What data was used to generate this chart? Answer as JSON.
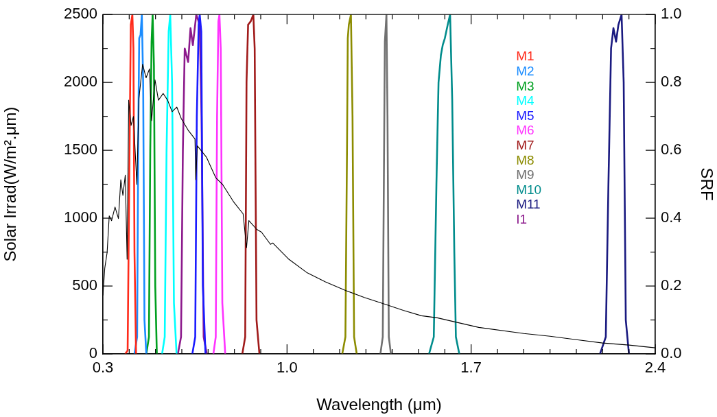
{
  "chart_data": {
    "type": "line",
    "xlabel": "Wavelength (μm)",
    "ylabel": "Solar Irrad(W/m².μm)",
    "y2label": "SRF",
    "legend": "top right",
    "grid": false,
    "marker": "none",
    "line_style": "solid",
    "xlim": [
      0.3,
      2.4
    ],
    "xticks": [
      {
        "value": 0.3,
        "label": "0.3"
      },
      {
        "value": 0.4,
        "label": null
      },
      {
        "value": 0.5,
        "label": null
      },
      {
        "value": 0.6,
        "label": null
      },
      {
        "value": 0.7,
        "label": null
      },
      {
        "value": 0.8,
        "label": null
      },
      {
        "value": 0.9,
        "label": null
      },
      {
        "value": 1.0,
        "label": "1.0"
      },
      {
        "value": 1.1,
        "label": null
      },
      {
        "value": 1.2,
        "label": null
      },
      {
        "value": 1.3,
        "label": null
      },
      {
        "value": 1.4,
        "label": null
      },
      {
        "value": 1.5,
        "label": null
      },
      {
        "value": 1.6,
        "label": null
      },
      {
        "value": 1.7,
        "label": "1.7"
      },
      {
        "value": 1.8,
        "label": null
      },
      {
        "value": 1.9,
        "label": null
      },
      {
        "value": 2.0,
        "label": null
      },
      {
        "value": 2.1,
        "label": null
      },
      {
        "value": 2.2,
        "label": null
      },
      {
        "value": 2.3,
        "label": null
      },
      {
        "value": 2.4,
        "label": "2.4"
      }
    ],
    "ylim": [
      0,
      2500
    ],
    "yticks": [
      0,
      {
        "value": 250,
        "label": null
      },
      500,
      {
        "value": 750,
        "label": null
      },
      1000,
      {
        "value": 1250,
        "label": null
      },
      1500,
      {
        "value": 1750,
        "label": null
      },
      2000,
      {
        "value": 2250,
        "label": null
      },
      2500
    ],
    "y2lim": [
      0,
      1
    ],
    "y2ticks": [
      {
        "value": 0,
        "label": "0.0"
      },
      {
        "value": 0.1,
        "label": null
      },
      {
        "value": 0.2,
        "label": "0.2"
      },
      {
        "value": 0.3,
        "label": null
      },
      {
        "value": 0.4,
        "label": "0.4"
      },
      {
        "value": 0.5,
        "label": null
      },
      {
        "value": 0.6,
        "label": "0.6"
      },
      {
        "value": 0.7,
        "label": null
      },
      {
        "value": 0.8,
        "label": "0.8"
      },
      {
        "value": 0.9,
        "label": null
      },
      {
        "value": 1.0,
        "label": "1.0"
      }
    ],
    "series": [
      {
        "color": "#000000",
        "x": [
          0.3,
          0.307,
          0.316,
          0.324,
          0.333,
          0.346,
          0.359,
          0.368,
          0.376,
          0.385,
          0.392,
          0.398,
          0.407,
          0.416,
          0.429,
          0.437,
          0.451,
          0.464,
          0.477,
          0.485,
          0.498,
          0.511,
          0.529,
          0.546,
          0.563,
          0.581,
          0.598,
          0.624,
          0.65,
          0.653,
          0.659,
          0.694,
          0.729,
          0.755,
          0.798,
          0.833,
          0.846,
          0.855,
          0.885,
          0.903,
          0.937,
          0.946,
          1.007,
          1.077,
          1.146,
          1.224,
          1.294,
          1.372,
          1.442,
          1.511,
          1.571,
          1.729,
          1.9,
          2.0,
          2.1,
          2.2,
          2.3,
          2.4
        ],
        "values": [
          431,
          631,
          747,
          1017,
          982,
          1082,
          997,
          1283,
          1167,
          1317,
          697,
          1869,
          1683,
          1749,
          1248,
          1884,
          2134,
          2034,
          2099,
          1718,
          2019,
          1869,
          1919,
          1869,
          1784,
          1818,
          1733,
          1648,
          1583,
          1283,
          1533,
          1448,
          1298,
          1248,
          1117,
          1032,
          782,
          982,
          917,
          897,
          807,
          817,
          697,
          597,
          531,
          466,
          416,
          366,
          321,
          281,
          266,
          195,
          150,
          130,
          105,
          80,
          65,
          45
        ]
      },
      {
        "name": "M1",
        "color": "#ff2a1a",
        "axis": "y2",
        "x": [
          0.385,
          0.394,
          0.4,
          0.406,
          0.412,
          0.416,
          0.42,
          0.426
        ],
        "values": [
          0,
          0.01,
          0.5,
          0.97,
          1.0,
          0.9,
          0.3,
          0
        ]
      },
      {
        "name": "M2",
        "color": "#1a8cff",
        "axis": "y2",
        "x": [
          0.42,
          0.43,
          0.435,
          0.438,
          0.443,
          0.448,
          0.453,
          0.458,
          0.465
        ],
        "values": [
          0,
          0.05,
          0.7,
          0.93,
          0.94,
          1.0,
          0.8,
          0.1,
          0
        ]
      },
      {
        "name": "M3",
        "color": "#00a020",
        "axis": "y2",
        "x": [
          0.465,
          0.475,
          0.48,
          0.485,
          0.489,
          0.494,
          0.499,
          0.505
        ],
        "values": [
          0,
          0.05,
          0.6,
          0.92,
          1.0,
          0.85,
          0.2,
          0
        ]
      },
      {
        "name": "M4",
        "color": "#00ffff",
        "axis": "y2",
        "x": [
          0.525,
          0.535,
          0.542,
          0.55,
          0.556,
          0.563,
          0.57,
          0.58
        ],
        "values": [
          0,
          0.05,
          0.6,
          0.95,
          1.0,
          0.8,
          0.15,
          0
        ]
      },
      {
        "name": "M5",
        "color": "#1a1aff",
        "axis": "y2",
        "x": [
          0.64,
          0.651,
          0.657,
          0.664,
          0.668,
          0.674,
          0.68,
          0.69
        ],
        "values": [
          0,
          0.05,
          0.7,
          0.97,
          1.0,
          0.95,
          0.2,
          0
        ]
      },
      {
        "name": "M6",
        "color": "#ff33ff",
        "axis": "y2",
        "x": [
          0.72,
          0.729,
          0.734,
          0.739,
          0.743,
          0.748,
          0.754,
          0.765
        ],
        "values": [
          0,
          0.05,
          0.7,
          0.98,
          1.0,
          0.9,
          0.15,
          0
        ]
      },
      {
        "name": "M7",
        "color": "#a01a1a",
        "axis": "y2",
        "x": [
          0.83,
          0.841,
          0.846,
          0.852,
          0.862,
          0.872,
          0.877,
          0.884,
          0.895
        ],
        "values": [
          0,
          0.05,
          0.8,
          0.97,
          0.98,
          1.0,
          0.9,
          0.1,
          0
        ]
      },
      {
        "name": "M8",
        "color": "#8c8c00",
        "axis": "y2",
        "x": [
          1.21,
          1.222,
          1.228,
          1.231,
          1.235,
          1.243,
          1.249,
          1.255,
          1.265
        ],
        "values": [
          0,
          0.05,
          0.6,
          0.93,
          0.97,
          1.0,
          0.7,
          0.05,
          0
        ]
      },
      {
        "name": "M9",
        "color": "#707070",
        "axis": "y2",
        "x": [
          1.355,
          1.364,
          1.369,
          1.372,
          1.378,
          1.382,
          1.387,
          1.395
        ],
        "values": [
          0,
          0.05,
          0.6,
          0.92,
          1.0,
          0.7,
          0.05,
          0
        ]
      },
      {
        "name": "M10",
        "color": "#008c8c",
        "axis": "y2",
        "x": [
          1.54,
          1.558,
          1.568,
          1.576,
          1.585,
          1.592,
          1.6,
          1.611,
          1.62,
          1.628,
          1.636,
          1.642,
          1.655
        ],
        "values": [
          0,
          0.05,
          0.5,
          0.8,
          0.88,
          0.91,
          0.93,
          0.97,
          1.0,
          0.75,
          0.3,
          0.05,
          0
        ]
      },
      {
        "name": "M11",
        "color": "#1a1a80",
        "axis": "y2",
        "x": [
          2.19,
          2.212,
          2.222,
          2.232,
          2.241,
          2.251,
          2.26,
          2.272,
          2.28,
          2.288,
          2.3
        ],
        "values": [
          0,
          0.05,
          0.5,
          0.9,
          0.96,
          0.92,
          0.97,
          1.0,
          0.8,
          0.1,
          0
        ]
      },
      {
        "name": "I1",
        "color": "#8c1a8c",
        "axis": "y2",
        "x": [
          0.585,
          0.597,
          0.604,
          0.611,
          0.624,
          0.633,
          0.642,
          0.655,
          0.668,
          0.675,
          0.683,
          0.695
        ],
        "values": [
          0,
          0.05,
          0.6,
          0.9,
          0.86,
          0.96,
          0.91,
          1.0,
          0.97,
          0.7,
          0.05,
          0
        ]
      }
    ]
  }
}
